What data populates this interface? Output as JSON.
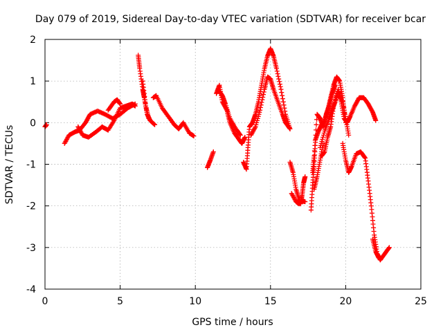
{
  "chart_data": {
    "type": "scatter",
    "title": "Day 079 of 2019, Sidereal Day-to-day VTEC variation (SDTVAR) for receiver bcar",
    "xlabel": "GPS time / hours",
    "ylabel": "SDTVAR / TECUs",
    "xlim": [
      0,
      25
    ],
    "ylim": [
      -4,
      2
    ],
    "grid": true,
    "marker": "+",
    "x_ticks": [
      0,
      5,
      10,
      15,
      20,
      25
    ],
    "y_ticks": [
      -4,
      -3,
      -2,
      -1,
      0,
      1,
      2
    ],
    "x_tick_labels": [
      "0",
      "5",
      "10",
      "15",
      "20",
      "25"
    ],
    "y_tick_labels": [
      "-4",
      "-3",
      "-2",
      "-1",
      "0",
      "1",
      "2"
    ],
    "series": [
      {
        "name": "SDTVAR",
        "color": "#ff0000",
        "segments": [
          {
            "x": [
              0.0,
              0.1
            ],
            "y": [
              -0.1,
              -0.05
            ]
          },
          {
            "x": [
              1.3,
              1.6,
              2.0,
              2.3,
              2.7,
              3.0,
              3.5,
              4.0,
              4.5,
              5.0,
              5.5,
              6.0
            ],
            "y": [
              -0.5,
              -0.3,
              -0.22,
              -0.18,
              0.0,
              0.2,
              0.28,
              0.2,
              0.1,
              0.2,
              0.35,
              0.45
            ]
          },
          {
            "x": [
              2.2,
              2.5,
              2.9,
              3.4,
              3.8,
              4.2,
              4.6,
              5.0,
              5.4,
              5.8,
              6.0
            ],
            "y": [
              -0.1,
              -0.3,
              -0.35,
              -0.22,
              -0.1,
              -0.18,
              0.05,
              0.35,
              0.4,
              0.45,
              0.4
            ]
          },
          {
            "x": [
              4.2,
              4.6,
              4.8,
              5.0
            ],
            "y": [
              0.3,
              0.5,
              0.55,
              0.45
            ]
          },
          {
            "x": [
              6.2,
              6.3,
              6.5,
              6.6,
              6.8,
              7.0,
              7.3
            ],
            "y": [
              1.62,
              1.3,
              0.8,
              0.6,
              0.2,
              0.05,
              -0.05
            ]
          },
          {
            "x": [
              6.5,
              6.7,
              6.9
            ],
            "y": [
              1.0,
              0.4,
              0.1
            ]
          },
          {
            "x": [
              7.2,
              7.4,
              7.8,
              8.2,
              8.6,
              8.9,
              9.2,
              9.6,
              9.9
            ],
            "y": [
              0.6,
              0.65,
              0.35,
              0.15,
              -0.05,
              -0.15,
              0.0,
              -0.25,
              -0.32
            ]
          },
          {
            "x": [
              10.8,
              11.0,
              11.2
            ],
            "y": [
              -1.08,
              -0.9,
              -0.7
            ]
          },
          {
            "x": [
              11.4,
              11.6,
              11.8,
              12.1,
              12.3,
              12.6,
              12.9,
              13.1,
              13.3
            ],
            "y": [
              0.7,
              0.9,
              0.5,
              0.3,
              0.0,
              -0.25,
              -0.4,
              -0.5,
              -0.35
            ]
          },
          {
            "x": [
              11.5,
              11.8,
              12.0,
              12.3,
              12.7,
              13.0
            ],
            "y": [
              0.8,
              0.65,
              0.45,
              0.1,
              -0.15,
              -0.3
            ]
          },
          {
            "x": [
              13.2,
              13.4,
              13.5,
              13.6,
              13.8,
              14.0,
              14.2,
              14.4,
              14.6,
              14.8,
              15.0,
              15.2,
              15.4,
              15.7,
              16.0,
              16.3
            ],
            "y": [
              -0.95,
              -1.12,
              -0.6,
              -0.1,
              0.0,
              0.2,
              0.5,
              0.9,
              1.3,
              1.6,
              1.78,
              1.6,
              1.3,
              0.8,
              0.2,
              -0.15
            ]
          },
          {
            "x": [
              13.7,
              14.0,
              14.3,
              14.6,
              14.8,
              15.0,
              15.2,
              15.5,
              15.8,
              16.0,
              16.3
            ],
            "y": [
              -0.3,
              -0.1,
              0.3,
              0.8,
              1.1,
              1.05,
              0.8,
              0.5,
              0.2,
              0.0,
              -0.15
            ]
          },
          {
            "x": [
              16.3,
              16.5,
              16.7,
              16.9,
              17.0,
              17.1,
              17.2,
              17.3
            ],
            "y": [
              -0.95,
              -1.2,
              -1.6,
              -1.85,
              -1.95,
              -1.75,
              -1.45,
              -1.3
            ]
          },
          {
            "x": [
              16.4,
              16.7,
              16.9,
              17.1,
              17.3
            ],
            "y": [
              -1.7,
              -1.9,
              -1.95,
              -1.88,
              -1.9
            ]
          },
          {
            "x": [
              17.7,
              17.8,
              17.9,
              18.0,
              18.2,
              18.4,
              18.6,
              18.8,
              19.0,
              19.2,
              19.4,
              19.6,
              19.8,
              20.0
            ],
            "y": [
              -2.1,
              -1.5,
              -1.0,
              -0.4,
              -0.2,
              -0.05,
              0.05,
              0.3,
              0.6,
              0.9,
              1.1,
              1.0,
              0.6,
              0.0
            ]
          },
          {
            "x": [
              17.8,
              17.9,
              18.1,
              18.3,
              18.5,
              18.7,
              18.9,
              19.1,
              19.3
            ],
            "y": [
              -1.2,
              -0.8,
              0.2,
              0.1,
              -0.1,
              0.2,
              0.4,
              0.7,
              0.9
            ]
          },
          {
            "x": [
              17.9,
              18.1,
              18.3,
              18.5
            ],
            "y": [
              -1.6,
              -1.3,
              -0.9,
              -0.5
            ]
          },
          {
            "x": [
              18.3,
              18.6,
              18.9,
              19.1,
              19.3,
              19.5,
              19.8,
              20.0,
              20.2
            ],
            "y": [
              -0.6,
              -0.2,
              0.1,
              0.3,
              0.5,
              0.75,
              0.5,
              0.1,
              -0.3
            ]
          },
          {
            "x": [
              18.4,
              18.6,
              18.8,
              19.0,
              19.2,
              19.5,
              19.7,
              19.9,
              20.1,
              20.3,
              20.6,
              20.9,
              21.2,
              21.5,
              21.8,
              22.0
            ],
            "y": [
              -0.8,
              -0.7,
              -0.35,
              -0.1,
              0.4,
              0.8,
              0.5,
              0.1,
              0.0,
              0.15,
              0.4,
              0.6,
              0.6,
              0.45,
              0.25,
              0.05
            ]
          },
          {
            "x": [
              19.8,
              20.0,
              20.2,
              20.4,
              20.7,
              21.0,
              21.3,
              21.5,
              21.7,
              21.9,
              22.1,
              22.3,
              22.6,
              22.9
            ],
            "y": [
              -0.5,
              -0.9,
              -1.2,
              -1.05,
              -0.75,
              -0.7,
              -0.85,
              -1.4,
              -2.0,
              -2.7,
              -3.15,
              -3.3,
              -3.15,
              -3.0
            ]
          },
          {
            "x": [
              21.8,
              22.0,
              22.2
            ],
            "y": [
              -2.8,
              -3.1,
              -3.25
            ]
          }
        ]
      }
    ]
  }
}
